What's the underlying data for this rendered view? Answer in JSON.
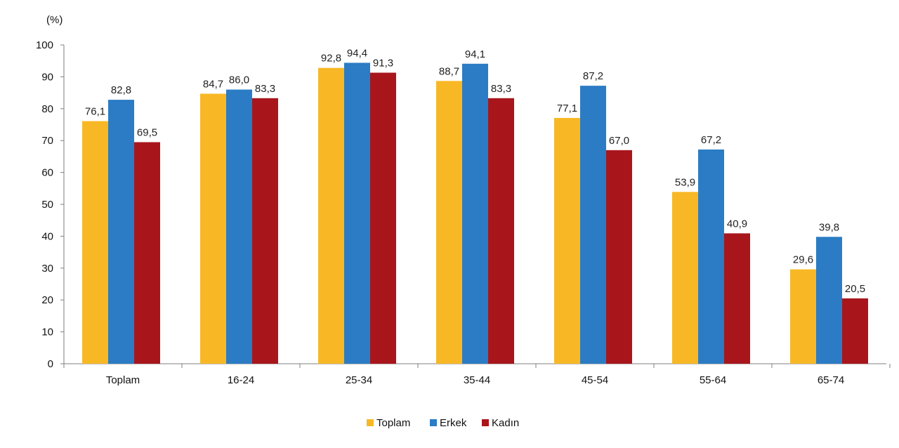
{
  "chart_data": {
    "type": "bar",
    "unit_label": "(%)",
    "title": "",
    "xlabel": "",
    "ylabel": "",
    "ylim": [
      0,
      100
    ],
    "yticks": [
      "0",
      "10",
      "20",
      "30",
      "40",
      "50",
      "60",
      "70",
      "80",
      "90",
      "100"
    ],
    "categories": [
      "Toplam",
      "16-24",
      "25-34",
      "35-44",
      "45-54",
      "55-64",
      "65-74"
    ],
    "series": [
      {
        "name": "Toplam",
        "color": "#F8B825",
        "values": [
          76.1,
          84.7,
          92.8,
          88.7,
          77.1,
          53.9,
          29.6
        ],
        "labels": [
          "76,1",
          "84,7",
          "92,8",
          "88,7",
          "77,1",
          "53,9",
          "29,6"
        ]
      },
      {
        "name": "Erkek",
        "color": "#2B7CC4",
        "values": [
          82.8,
          86.0,
          94.4,
          94.1,
          87.2,
          67.2,
          39.8
        ],
        "labels": [
          "82,8",
          "86,0",
          "94,4",
          "94,1",
          "87,2",
          "67,2",
          "39,8"
        ]
      },
      {
        "name": "Kadın",
        "color": "#A8161C",
        "values": [
          69.5,
          83.3,
          91.3,
          83.3,
          67.0,
          40.9,
          20.5
        ],
        "labels": [
          "69,5",
          "83,3",
          "91,3",
          "83,3",
          "67,0",
          "40,9",
          "20,5"
        ]
      }
    ],
    "legend": "bottom-center",
    "grid": false
  }
}
